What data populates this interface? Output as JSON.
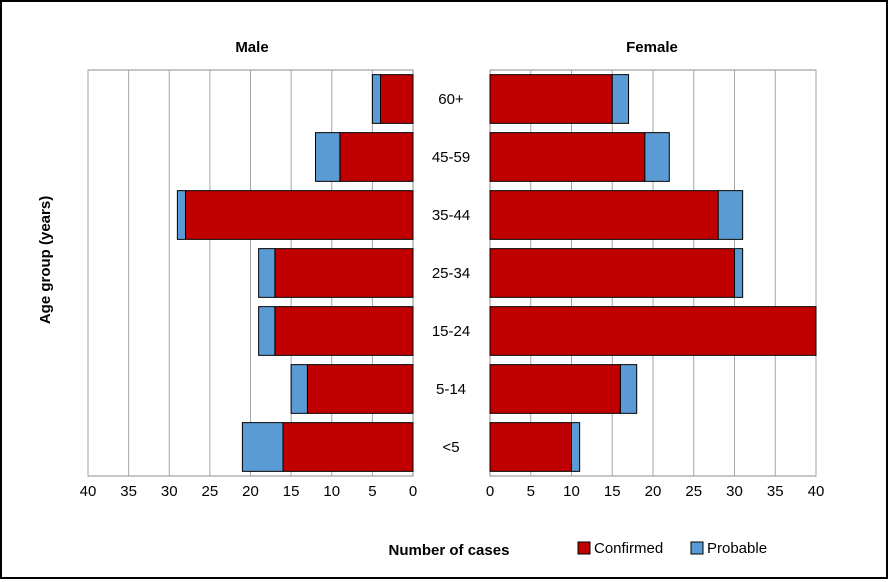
{
  "chart_data": {
    "type": "bar",
    "orientation": "horizontal",
    "layout": "population-pyramid",
    "categories": [
      "60+",
      "45-59",
      "35-44",
      "25-34",
      "15-24",
      "5-14",
      "<5"
    ],
    "panels": [
      {
        "title": "Male",
        "direction": "reversed",
        "xlim": [
          0,
          40
        ],
        "xticks": [
          0,
          5,
          10,
          15,
          20,
          25,
          30,
          35,
          40
        ],
        "series": [
          {
            "name": "Confirmed",
            "values": [
              4,
              9,
              28,
              17,
              17,
              13,
              16
            ]
          },
          {
            "name": "Probable",
            "values": [
              1,
              3,
              1,
              2,
              2,
              2,
              5
            ]
          }
        ]
      },
      {
        "title": "Female",
        "direction": "normal",
        "xlim": [
          0,
          40
        ],
        "xticks": [
          0,
          5,
          10,
          15,
          20,
          25,
          30,
          35,
          40
        ],
        "series": [
          {
            "name": "Confirmed",
            "values": [
              15,
              19,
              28,
              30,
              40,
              16,
              10
            ]
          },
          {
            "name": "Probable",
            "values": [
              2,
              3,
              3,
              1,
              0,
              2,
              1
            ]
          }
        ]
      }
    ],
    "xlabel": "Number of cases",
    "ylabel": "Age group (years)",
    "legend": {
      "position": "bottom",
      "items": [
        {
          "name": "Confirmed",
          "color": "#C00000"
        },
        {
          "name": "Probable",
          "color": "#5B9BD5"
        }
      ]
    },
    "grid": {
      "vertical": true,
      "color": "#A6A6A6"
    },
    "colors": {
      "Confirmed": "#C00000",
      "Probable": "#5B9BD5"
    }
  }
}
